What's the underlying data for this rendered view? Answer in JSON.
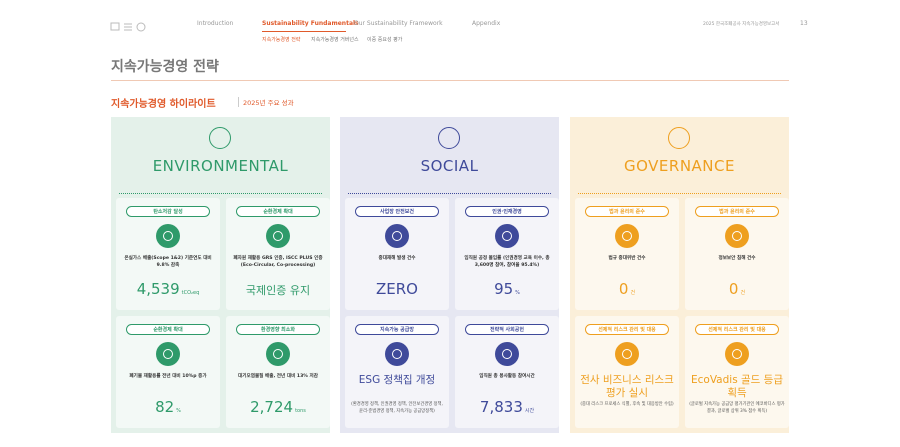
{
  "header": {
    "nav": [
      "Introduction",
      "Sustainability Fundamentals",
      "Our Sustainability Framework",
      "Appendix"
    ],
    "subnav": [
      "지속가능경영 전략",
      "지속가능경영 거버넌스",
      "이중 중요성 평가"
    ],
    "report": "2025 한국조폐공사 지속가능경영보고서",
    "page": "13"
  },
  "title": "지속가능경영 전략",
  "section": {
    "heading": "지속가능경영 하이라이트",
    "subheading": "2025년 주요 성과"
  },
  "columns": [
    {
      "name": "ENVIRONMENTAL",
      "cards": [
        {
          "tag": "탄소저감 달성",
          "desc": "온실가스 배출(Scope 1&2) 기준연도 대비 9.8% 감축",
          "value": "4,539",
          "unit": "tCO₂eq"
        },
        {
          "tag": "순환경제 확대",
          "desc": "폐자원 재활용 GRS 인증, ISCC PLUS 인증 (Eco-Circular, Co-processing)",
          "value": "국제인증 유지"
        },
        {
          "tag": "순환경제 확대",
          "desc": "폐기물 재활용률 전년 대비 10%p 증가",
          "value": "82",
          "unit": "%"
        },
        {
          "tag": "환경영향 최소화",
          "desc": "대기오염물질 배출, 전년 대비 13% 저감",
          "value": "2,724",
          "unit": "tons"
        }
      ]
    },
    {
      "name": "SOCIAL",
      "cards": [
        {
          "tag": "사업장 안전보건",
          "desc": "중대재해 발생 건수",
          "value": "ZERO"
        },
        {
          "tag": "인권·인재경영",
          "desc": "임직원 공정 몰입률 (인권경영 교육 이수, 총 3,600명 참여, 참여율 95.4%)",
          "value": "95",
          "unit": "%"
        },
        {
          "tag": "지속가능 공급망",
          "headline": "ESG 정책집 개정",
          "note": "(환경경영 정책, 인권경영 정책, 안전보건경영 정책, 윤리·준법경영 정책, 지속가능 공급망정책)"
        },
        {
          "tag": "전략적 사회공헌",
          "desc": "임직원 총 봉사활동 참여시간",
          "value": "7,833",
          "unit": "시간"
        }
      ]
    },
    {
      "name": "GOVERNANCE",
      "cards": [
        {
          "tag": "법과 윤리의 준수",
          "desc": "법규 중대위반 건수",
          "value": "0",
          "unit": "건"
        },
        {
          "tag": "법과 윤리의 준수",
          "desc": "정보보안 침해 건수",
          "value": "0",
          "unit": "건"
        },
        {
          "tag": "선제적 리스크 관리 및 대응",
          "headline": "전사 비즈니스 리스크 평가 실시",
          "note": "(중대 리스크 프로세스 식별, 후속 및 대응방안 수립)"
        },
        {
          "tag": "선제적 리스크 관리 및 대응",
          "headline": "EcoVadis 골드 등급 획득",
          "note": "(글로벌 지속가능 공급망 평가기관인 에코바디스 평가 결과, 글로벌 상위 3% 점수 획득)"
        }
      ]
    }
  ]
}
